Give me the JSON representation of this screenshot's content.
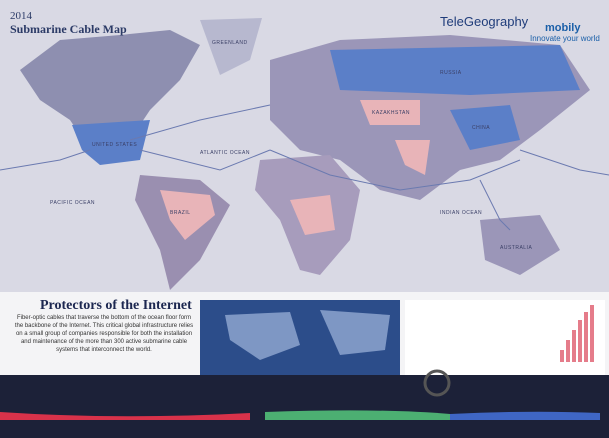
{
  "header": {
    "year": "2014",
    "title": "Submarine Cable Map"
  },
  "logos": {
    "telegeography": "TeleGeography",
    "mobily": "mobily",
    "tagline": "Innovate your world"
  },
  "map": {
    "labels": [
      "GREENLAND",
      "UNITED STATES",
      "RUSSIA",
      "KAZAKHSTAN",
      "CHINA",
      "BRAZIL",
      "AUSTRALIA",
      "ATLANTIC OCEAN",
      "PACIFIC OCEAN",
      "INDIAN OCEAN"
    ]
  },
  "section": {
    "title": "Protectors of the Internet",
    "body": "Fiber-optic cables that traverse the bottom of the ocean floor form the backbone of the Internet. This critical global infrastructure relies on a small group of companies responsible for both the installation and maintenance of the more than 300 active submarine cable systems that interconnect the world."
  }
}
